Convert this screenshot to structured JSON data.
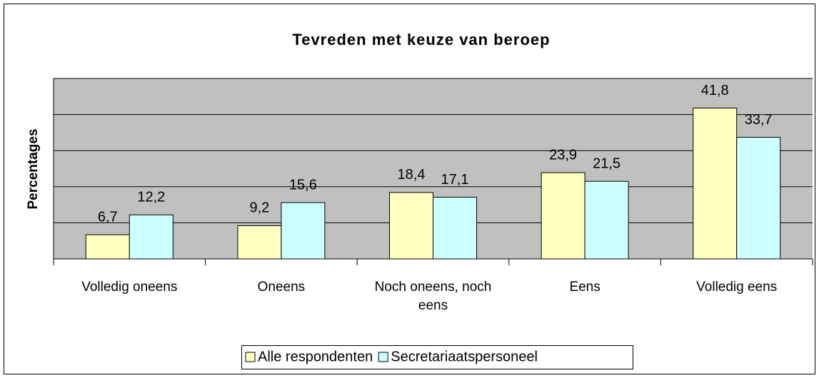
{
  "chart_data": {
    "type": "bar",
    "title": "Tevreden met keuze van beroep",
    "y_label": "Percentages",
    "categories": [
      "Volledig oneens",
      "Oneens",
      "Noch oneens, noch eens",
      "Eens",
      "Volledig eens"
    ],
    "series": [
      {
        "name": "Alle respondenten",
        "color": "#ffffc0",
        "values": [
          6.7,
          9.2,
          18.4,
          23.9,
          41.8
        ],
        "value_labels": [
          "6,7",
          "9,2",
          "18,4",
          "23,9",
          "41,8"
        ]
      },
      {
        "name": "Secretariaatspersoneel",
        "color": "#ccffff",
        "values": [
          12.2,
          15.6,
          17.1,
          21.5,
          33.7
        ],
        "value_labels": [
          "12,2",
          "15,6",
          "17,1",
          "21,5",
          "33,7"
        ]
      }
    ],
    "ylim": [
      0,
      50
    ],
    "yticks": [
      0,
      10,
      20,
      30,
      40,
      50
    ],
    "grid": true,
    "legend": "bottom"
  }
}
